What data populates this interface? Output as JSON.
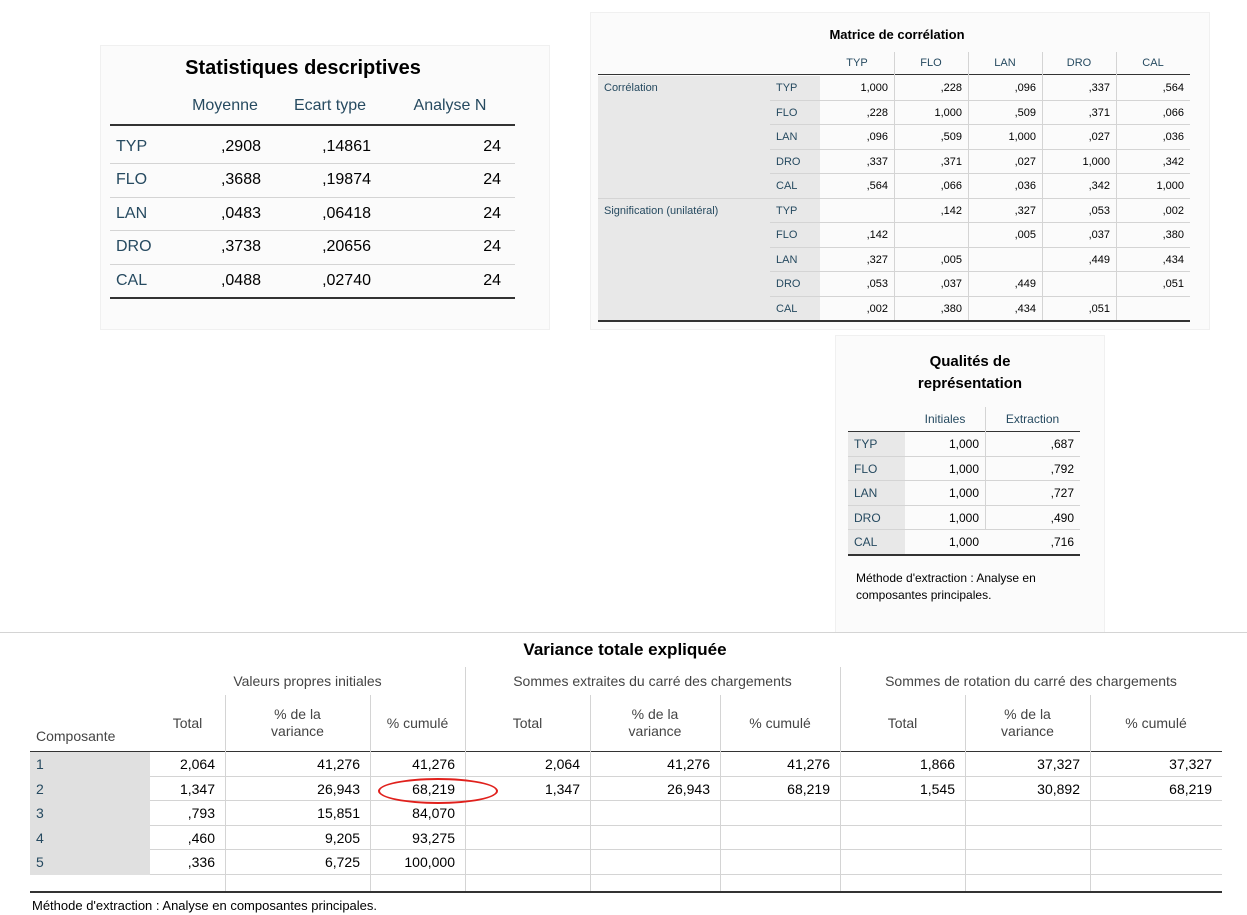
{
  "descriptive": {
    "title": "Statistiques descriptives",
    "headers": [
      "Moyenne",
      "Ecart type",
      "Analyse N"
    ],
    "rows": [
      {
        "label": "TYP",
        "cells": [
          ",2908",
          ",14861",
          "24"
        ]
      },
      {
        "label": "FLO",
        "cells": [
          ",3688",
          ",19874",
          "24"
        ]
      },
      {
        "label": "LAN",
        "cells": [
          ",0483",
          ",06418",
          "24"
        ]
      },
      {
        "label": "DRO",
        "cells": [
          ",3738",
          ",20656",
          "24"
        ]
      },
      {
        "label": "CAL",
        "cells": [
          ",0488",
          ",02740",
          "24"
        ]
      }
    ]
  },
  "correlation": {
    "title": "Matrice de corrélation",
    "headers": [
      "TYP",
      "FLO",
      "LAN",
      "DRO",
      "CAL"
    ],
    "groups": [
      {
        "label": "Corrélation",
        "rows": [
          {
            "label": "TYP",
            "cells": [
              "1,000",
              ",228",
              ",096",
              ",337",
              ",564"
            ]
          },
          {
            "label": "FLO",
            "cells": [
              ",228",
              "1,000",
              ",509",
              ",371",
              ",066"
            ]
          },
          {
            "label": "LAN",
            "cells": [
              ",096",
              ",509",
              "1,000",
              ",027",
              ",036"
            ]
          },
          {
            "label": "DRO",
            "cells": [
              ",337",
              ",371",
              ",027",
              "1,000",
              ",342"
            ]
          },
          {
            "label": "CAL",
            "cells": [
              ",564",
              ",066",
              ",036",
              ",342",
              "1,000"
            ]
          }
        ]
      },
      {
        "label": "Signification (unilatéral)",
        "rows": [
          {
            "label": "TYP",
            "cells": [
              null,
              ",142",
              ",327",
              ",053",
              ",002"
            ]
          },
          {
            "label": "FLO",
            "cells": [
              ",142",
              null,
              ",005",
              ",037",
              ",380"
            ]
          },
          {
            "label": "LAN",
            "cells": [
              ",327",
              ",005",
              null,
              ",449",
              ",434"
            ]
          },
          {
            "label": "DRO",
            "cells": [
              ",053",
              ",037",
              ",449",
              null,
              ",051"
            ]
          },
          {
            "label": "CAL",
            "cells": [
              ",002",
              ",380",
              ",434",
              ",051",
              null
            ]
          }
        ]
      }
    ]
  },
  "communalities": {
    "title": "Qualités de représentation",
    "headers": [
      "Initiales",
      "Extraction"
    ],
    "rows": [
      {
        "label": "TYP",
        "cells": [
          "1,000",
          ",687"
        ]
      },
      {
        "label": "FLO",
        "cells": [
          "1,000",
          ",792"
        ]
      },
      {
        "label": "LAN",
        "cells": [
          "1,000",
          ",727"
        ]
      },
      {
        "label": "DRO",
        "cells": [
          "1,000",
          ",490"
        ]
      },
      {
        "label": "CAL",
        "cells": [
          "1,000",
          ",716"
        ]
      }
    ],
    "note": "Méthode d'extraction : Analyse en composantes principales."
  },
  "variance": {
    "title": "Variance totale expliquée",
    "row_header": "Composante",
    "groups": [
      "Valeurs propres initiales",
      "Sommes extraites du carré des chargements",
      "Sommes de rotation du carré des chargements"
    ],
    "subheaders": [
      "Total",
      "% de la variance",
      "% cumulé"
    ],
    "rows": [
      {
        "label": "1",
        "cells": [
          "2,064",
          "41,276",
          "41,276",
          "2,064",
          "41,276",
          "41,276",
          "1,866",
          "37,327",
          "37,327"
        ]
      },
      {
        "label": "2",
        "cells": [
          "1,347",
          "26,943",
          "68,219",
          "1,347",
          "26,943",
          "68,219",
          "1,545",
          "30,892",
          "68,219"
        ]
      },
      {
        "label": "3",
        "cells": [
          ",793",
          "15,851",
          "84,070",
          null,
          null,
          null,
          null,
          null,
          null
        ]
      },
      {
        "label": "4",
        "cells": [
          ",460",
          "9,205",
          "93,275",
          null,
          null,
          null,
          null,
          null,
          null
        ]
      },
      {
        "label": "5",
        "cells": [
          ",336",
          "6,725",
          "100,000",
          null,
          null,
          null,
          null,
          null,
          null
        ]
      }
    ],
    "note": "Méthode d'extraction : Analyse en composantes principales."
  }
}
